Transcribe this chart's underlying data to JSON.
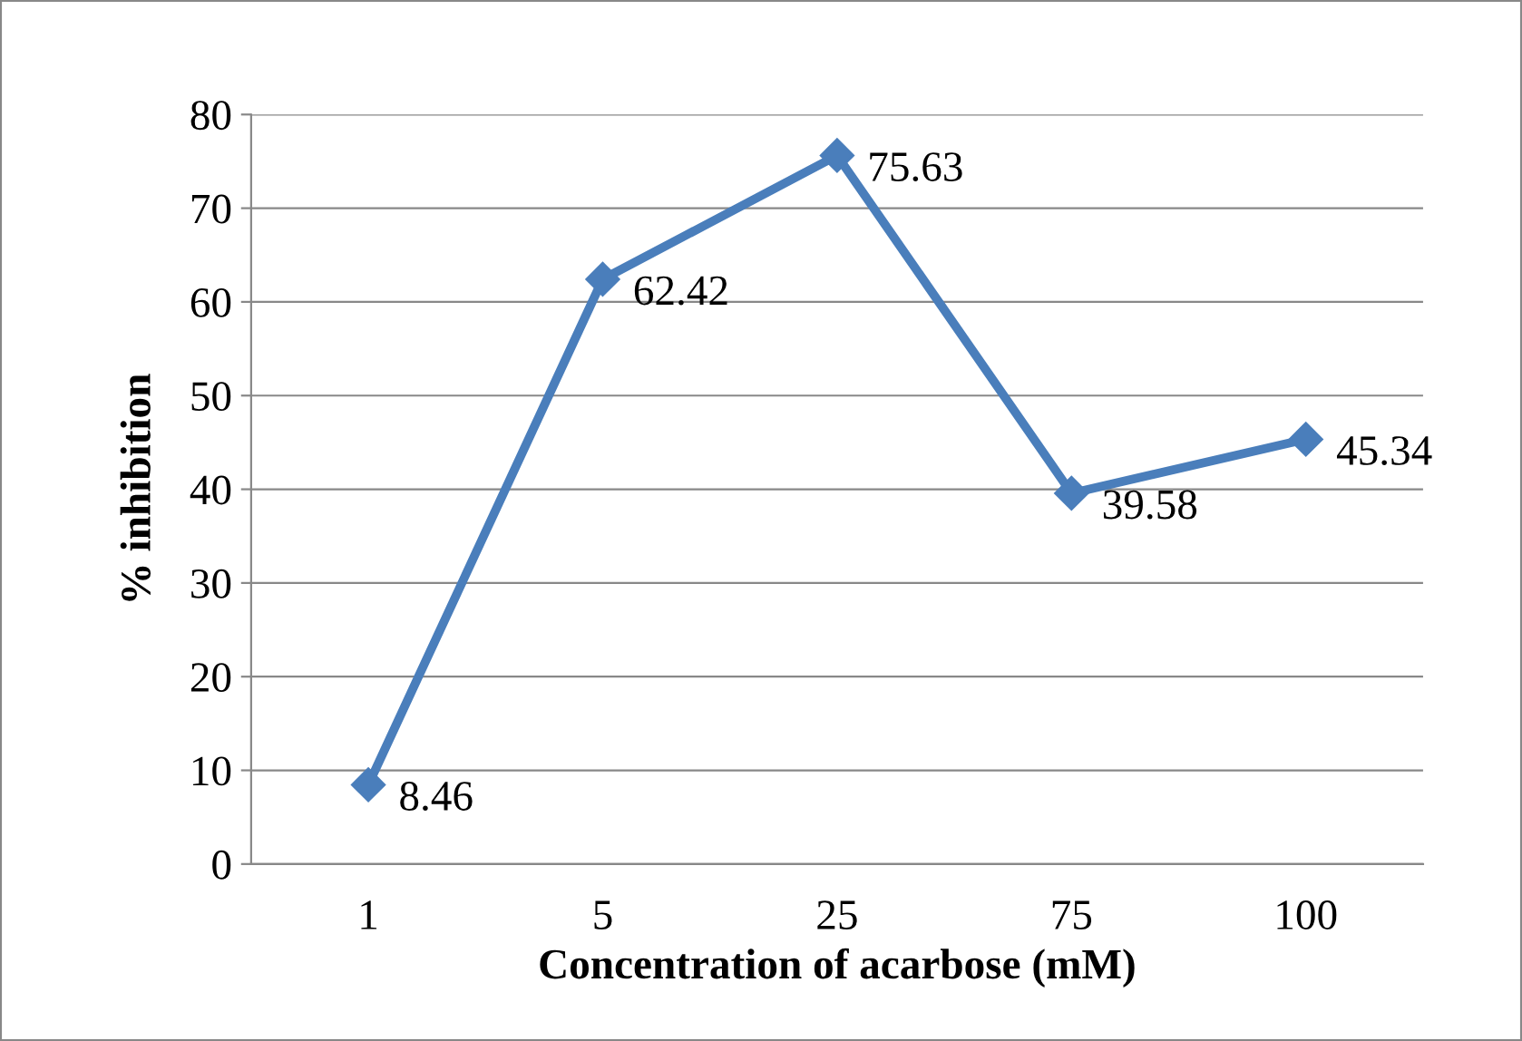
{
  "chart_data": {
    "type": "line",
    "xlabel": "Concentration of acarbose (mM)",
    "ylabel": "% inhibition",
    "categories": [
      "1",
      "5",
      "25",
      "75",
      "100"
    ],
    "series": [
      {
        "color": "#4a7ebb",
        "values": [
          8.46,
          62.42,
          75.63,
          39.58,
          45.34
        ]
      }
    ],
    "data_labels": true,
    "marker": "diamond",
    "line_style": "solid",
    "grid": "y",
    "legend": false,
    "ylim": [
      0,
      80
    ],
    "yticks": [
      0,
      10,
      20,
      30,
      40,
      50,
      60,
      70,
      80
    ]
  }
}
